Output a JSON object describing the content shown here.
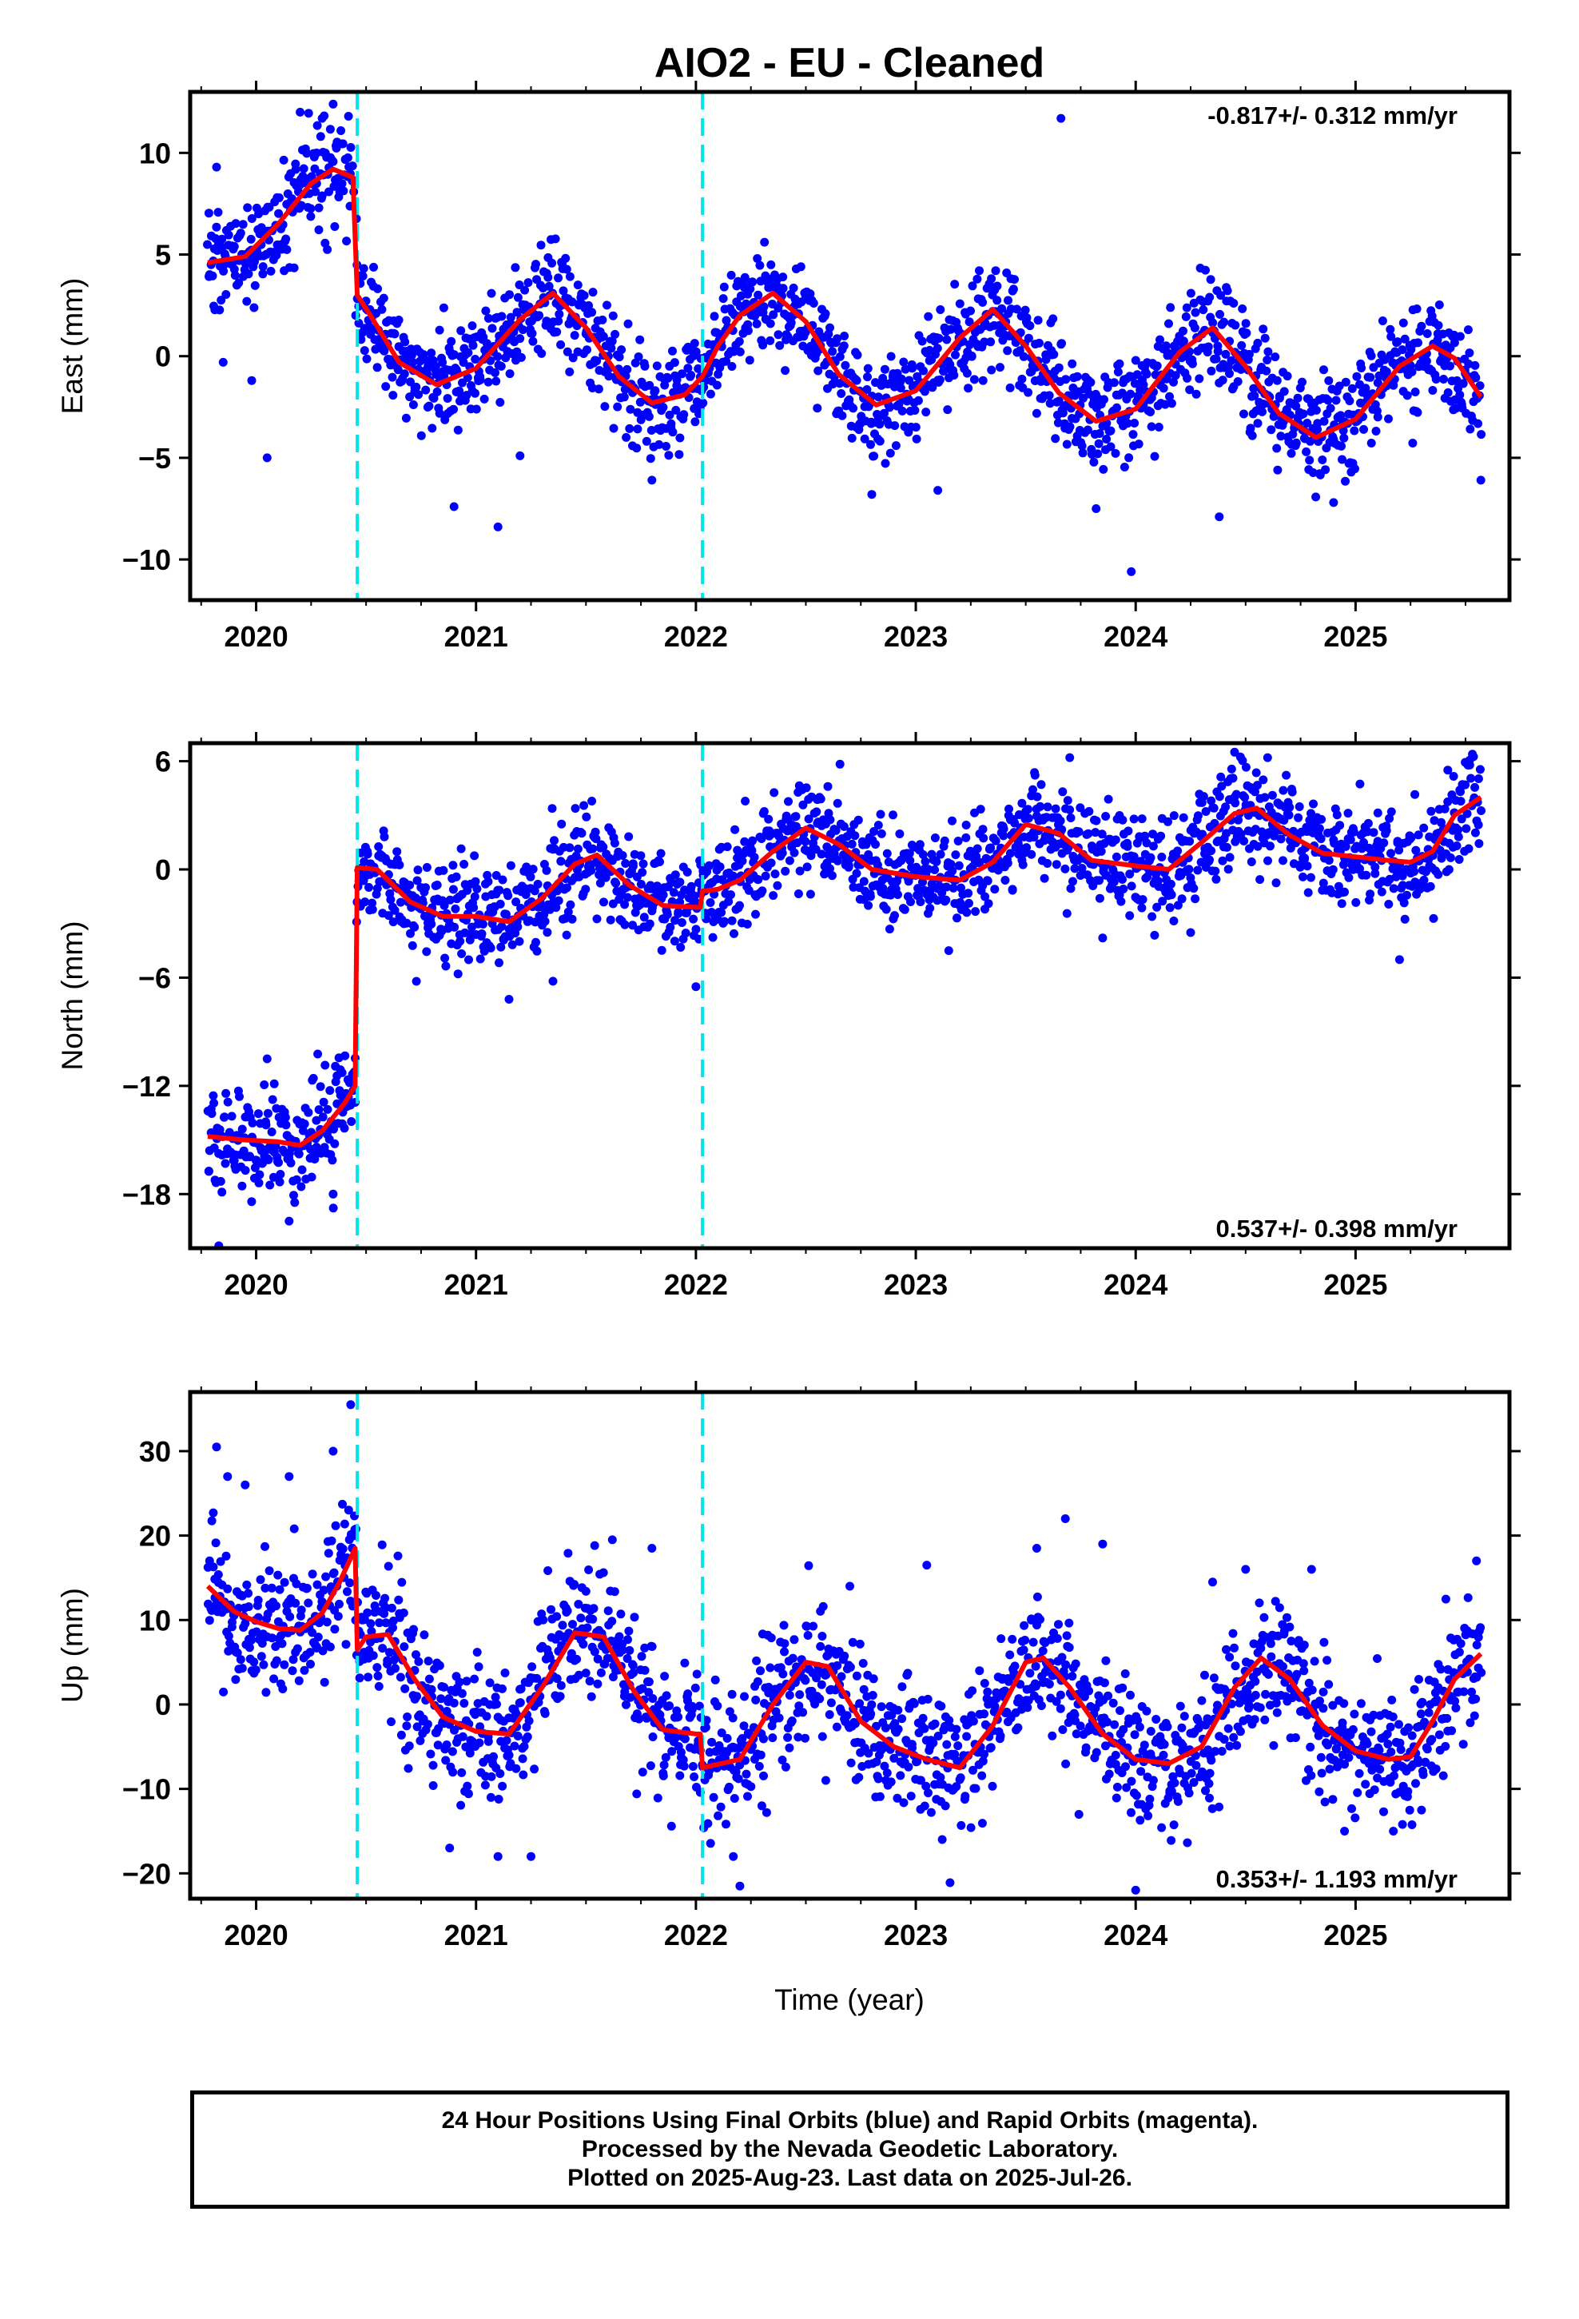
{
  "title": "AIO2  - EU - Cleaned",
  "footer": {
    "line1": "24 Hour Positions Using Final Orbits (blue) and Rapid Orbits (magenta).",
    "line2": "Processed by the Nevada Geodetic Laboratory.",
    "line3": "Plotted on 2025-Aug-23. Last data on 2025-Jul-26."
  },
  "colors": {
    "points": "#0000ff",
    "model": "#ff0000",
    "breaks": "#00e5ee",
    "frame": "#000000"
  },
  "chart_data": [
    {
      "type": "scatter",
      "title": "AIO2  - EU - Cleaned",
      "xlabel": "",
      "ylabel": "East (mm)",
      "xlim": [
        2019.7,
        2025.7
      ],
      "ylim": [
        -12,
        13
      ],
      "x_ticks": [
        2020,
        2021,
        2022,
        2023,
        2024,
        2025
      ],
      "y_ticks": [
        10,
        5,
        0,
        -5,
        -10
      ],
      "y_tick_labels": [
        "10",
        "5",
        "0",
        "−5",
        "−10"
      ],
      "rate_label": "-0.817+/- 0.312 mm/yr",
      "rate_position": "top-right",
      "breaks": [
        2020.46,
        2022.03
      ],
      "grid": false,
      "scatter_spread": 1.3,
      "model_line": {
        "x": [
          2019.78,
          2019.95,
          2020.1,
          2020.25,
          2020.35,
          2020.44,
          2020.46,
          2020.52,
          2020.65,
          2020.82,
          2021.0,
          2021.2,
          2021.35,
          2021.5,
          2021.65,
          2021.8,
          2021.95,
          2022.03,
          2022.1,
          2022.2,
          2022.35,
          2022.5,
          2022.65,
          2022.82,
          2023.0,
          2023.2,
          2023.35,
          2023.5,
          2023.65,
          2023.82,
          2024.0,
          2024.2,
          2024.35,
          2024.5,
          2024.65,
          2024.82,
          2025.0,
          2025.2,
          2025.35,
          2025.45,
          2025.57
        ],
        "y": [
          4.6,
          4.9,
          6.5,
          8.5,
          9.2,
          8.8,
          3.0,
          2.0,
          -0.3,
          -1.4,
          -0.6,
          1.8,
          3.1,
          1.4,
          -1.0,
          -2.3,
          -1.9,
          -1.0,
          0.5,
          2.0,
          3.1,
          1.7,
          -0.9,
          -2.4,
          -1.7,
          0.9,
          2.3,
          0.5,
          -1.8,
          -3.2,
          -2.6,
          0.2,
          1.4,
          -0.5,
          -2.8,
          -4.0,
          -3.1,
          -0.5,
          0.5,
          -0.1,
          -2.0
        ]
      },
      "outliers": {
        "x": [
          2019.85,
          2019.98,
          2020.05,
          2019.82,
          2020.2,
          2020.3,
          2020.35,
          2020.42,
          2020.9,
          2021.1,
          2021.2,
          2021.8,
          2022.8,
          2023.1,
          2023.66,
          2023.82,
          2023.98,
          2024.38,
          2024.9,
          2025.57
        ],
        "y": [
          -0.3,
          -1.2,
          -5.0,
          9.3,
          12.0,
          11.7,
          12.4,
          11.8,
          -7.4,
          -8.4,
          -4.9,
          -6.1,
          -6.8,
          -6.6,
          11.7,
          -7.5,
          -10.6,
          -7.9,
          -7.2,
          -6.1
        ]
      }
    },
    {
      "type": "scatter",
      "title": "",
      "xlabel": "",
      "ylabel": "North (mm)",
      "xlim": [
        2019.7,
        2025.7
      ],
      "ylim": [
        -21,
        7
      ],
      "x_ticks": [
        2020,
        2021,
        2022,
        2023,
        2024,
        2025
      ],
      "y_ticks": [
        6,
        0,
        -6,
        -12,
        -18
      ],
      "y_tick_labels": [
        "6",
        "0",
        "−6",
        "−12",
        "−18"
      ],
      "rate_label": "0.537+/- 0.398 mm/yr",
      "rate_position": "bottom-right",
      "breaks": [
        2020.46,
        2022.03
      ],
      "grid": false,
      "scatter_spread": 1.4,
      "model_line": {
        "x": [
          2019.78,
          2019.95,
          2020.1,
          2020.2,
          2020.3,
          2020.4,
          2020.45,
          2020.46,
          2020.55,
          2020.7,
          2020.85,
          2021.0,
          2021.15,
          2021.3,
          2021.45,
          2021.55,
          2021.7,
          2021.85,
          2022.0,
          2022.02,
          2022.03,
          2022.1,
          2022.2,
          2022.35,
          2022.5,
          2022.65,
          2022.8,
          2023.0,
          2023.2,
          2023.35,
          2023.5,
          2023.65,
          2023.8,
          2024.0,
          2024.15,
          2024.3,
          2024.45,
          2024.55,
          2024.7,
          2024.85,
          2025.0,
          2025.15,
          2025.25,
          2025.35,
          2025.45,
          2025.57
        ],
        "y": [
          -14.8,
          -15.0,
          -15.1,
          -15.3,
          -14.5,
          -13.0,
          -12.0,
          0.1,
          0.0,
          -1.8,
          -2.6,
          -2.6,
          -2.9,
          -1.6,
          0.3,
          0.8,
          -0.9,
          -2.0,
          -2.1,
          -2.1,
          -1.2,
          -1.1,
          -0.6,
          1.0,
          2.3,
          1.4,
          0.0,
          -0.4,
          -0.6,
          0.4,
          2.5,
          2.0,
          0.5,
          0.2,
          0.0,
          1.5,
          3.1,
          3.4,
          1.9,
          0.9,
          0.7,
          0.5,
          0.4,
          1.0,
          3.0,
          4.0
        ]
      },
      "outliers": {
        "x": [
          2019.83,
          2020.05,
          2020.15,
          2020.35,
          2021.15,
          2021.35,
          2022.0,
          2022.6,
          2023.15,
          2023.7,
          2023.85,
          2024.25,
          2024.45,
          2024.6,
          2025.2
        ],
        "y": [
          -21.2,
          -10.5,
          -19.5,
          -18.0,
          -7.2,
          -6.2,
          -6.5,
          4.6,
          -4.5,
          6.2,
          -3.8,
          -3.5,
          6.5,
          6.2,
          -5.0
        ]
      }
    },
    {
      "type": "scatter",
      "title": "",
      "xlabel": "Time (year)",
      "ylabel": "Up (mm)",
      "xlim": [
        2019.7,
        2025.7
      ],
      "ylim": [
        -23,
        37
      ],
      "x_ticks": [
        2020,
        2021,
        2022,
        2023,
        2024,
        2025
      ],
      "y_ticks": [
        30,
        20,
        10,
        0,
        -10,
        -20
      ],
      "y_tick_labels": [
        "30",
        "20",
        "10",
        "0",
        "−10",
        "−20"
      ],
      "rate_label": "0.353+/- 1.193 mm/yr",
      "rate_position": "bottom-right",
      "breaks": [
        2020.46,
        2022.03
      ],
      "grid": false,
      "scatter_spread": 4.0,
      "model_line": {
        "x": [
          2019.78,
          2019.9,
          2020.0,
          2020.1,
          2020.2,
          2020.3,
          2020.38,
          2020.45,
          2020.46,
          2020.5,
          2020.6,
          2020.72,
          2020.85,
          2021.0,
          2021.15,
          2021.3,
          2021.45,
          2021.58,
          2021.72,
          2021.85,
          2022.0,
          2022.02,
          2022.03,
          2022.2,
          2022.35,
          2022.5,
          2022.6,
          2022.75,
          2022.9,
          2023.05,
          2023.2,
          2023.35,
          2023.5,
          2023.58,
          2023.7,
          2023.85,
          2024.0,
          2024.15,
          2024.3,
          2024.45,
          2024.57,
          2024.7,
          2024.85,
          2025.0,
          2025.15,
          2025.25,
          2025.35,
          2025.45,
          2025.57
        ],
        "y": [
          14.0,
          11.0,
          9.8,
          9.0,
          8.8,
          10.8,
          14.5,
          18.5,
          6.5,
          8.0,
          8.3,
          3.0,
          -1.5,
          -3.2,
          -3.5,
          2.0,
          8.5,
          8.0,
          1.5,
          -3.0,
          -3.5,
          -3.5,
          -7.5,
          -6.5,
          0.0,
          5.0,
          4.5,
          -2.0,
          -5.0,
          -6.5,
          -7.5,
          -2.5,
          5.0,
          5.5,
          2.0,
          -3.5,
          -6.5,
          -7.0,
          -5.0,
          2.0,
          5.5,
          3.0,
          -2.5,
          -5.5,
          -6.5,
          -6.2,
          -2.0,
          3.0,
          6.0
        ]
      },
      "outliers": {
        "x": [
          2019.82,
          2019.87,
          2019.95,
          2020.15,
          2020.35,
          2020.43,
          2020.88,
          2021.1,
          2021.25,
          2021.62,
          2021.8,
          2022.17,
          2022.2,
          2022.3,
          2022.7,
          2023.05,
          2023.12,
          2023.55,
          2023.68,
          2023.85,
          2024.0,
          2024.35,
          2024.5,
          2024.8,
          2024.95,
          2025.3,
          2025.55
        ],
        "y": [
          30.5,
          27.0,
          26.0,
          27.0,
          30.0,
          35.5,
          -17.0,
          -18.0,
          -18.0,
          19.5,
          18.5,
          -18.0,
          -21.5,
          -12.0,
          14.0,
          16.5,
          -16.0,
          18.5,
          22.0,
          19.0,
          -22.0,
          14.5,
          16.0,
          16.0,
          -15.0,
          -12.5,
          17.0
        ]
      }
    }
  ]
}
